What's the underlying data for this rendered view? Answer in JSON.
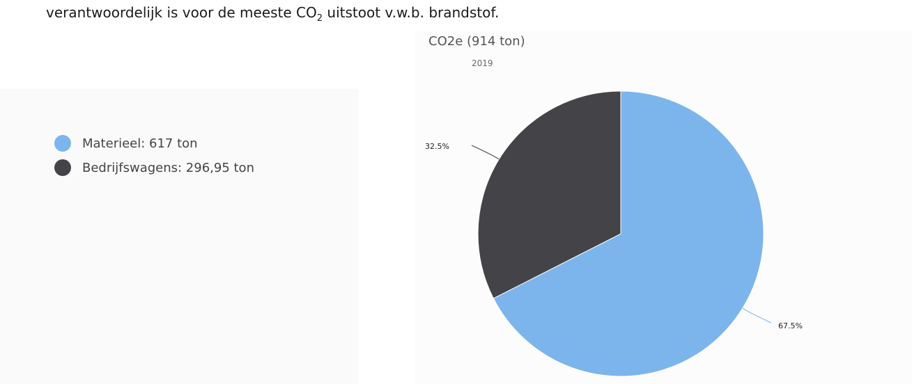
{
  "document": {
    "text_before": "verantwoordelijk is voor de meeste CO",
    "subscript": "2",
    "text_after": " uitstoot v.w.b. brandstof."
  },
  "legend": {
    "items": [
      {
        "label": "Materieel: 617 ton",
        "color": "#7cb5ec"
      },
      {
        "label": "Bedrijfswagens: 296,95 ton",
        "color": "#434348"
      }
    ]
  },
  "chart_data": {
    "type": "pie",
    "title": "CO2e (914 ton)",
    "subtitle": "2019",
    "slices": [
      {
        "name": "Materieel",
        "value": 617,
        "percent_label": "67.5%",
        "color": "#7cb5ec"
      },
      {
        "name": "Bedrijfswagens",
        "value": 296.95,
        "percent_label": "32.5%",
        "color": "#434348"
      }
    ],
    "legend_placement": "left"
  }
}
